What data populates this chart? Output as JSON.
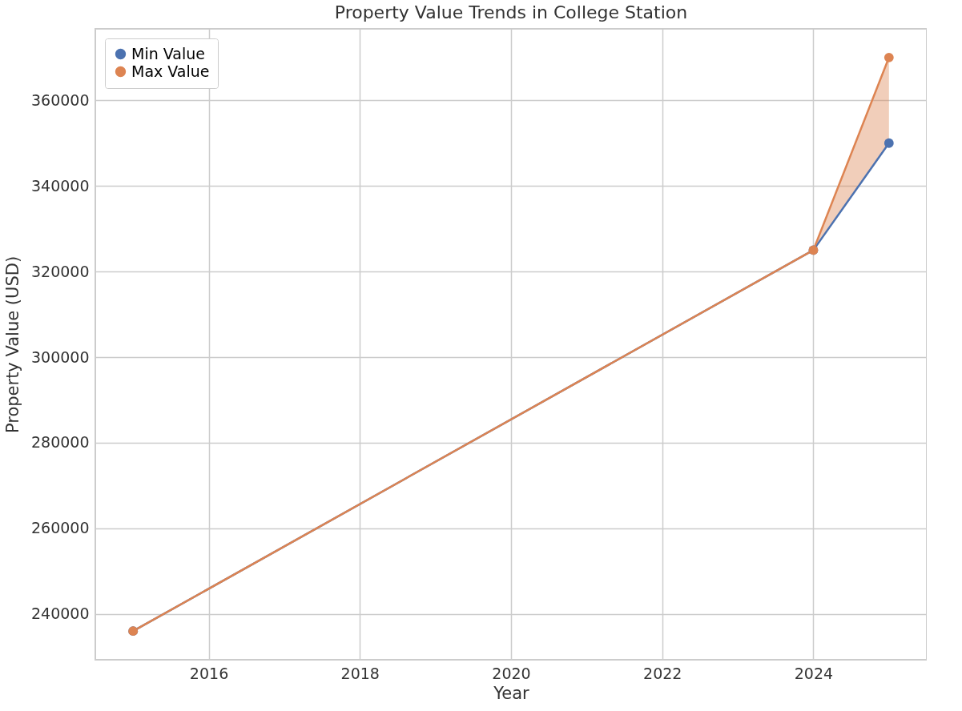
{
  "chart_data": {
    "type": "line",
    "title": "Property Value Trends in College Station",
    "xlabel": "Year",
    "ylabel": "Property Value (USD)",
    "x": [
      2015,
      2024,
      2025
    ],
    "series": [
      {
        "name": "Min Value",
        "color": "#4c72b0",
        "values": [
          236000,
          325000,
          350000
        ]
      },
      {
        "name": "Max Value",
        "color": "#dd8452",
        "values": [
          236000,
          325000,
          370000
        ],
        "lower": [
          null,
          325000,
          350000
        ],
        "upper": [
          null,
          325000,
          370000
        ]
      }
    ],
    "xlim": [
      2014.5,
      2025.5
    ],
    "xticks": [
      2016,
      2018,
      2020,
      2022,
      2024
    ],
    "ylim": [
      229300,
      376700
    ],
    "yticks": [
      240000,
      260000,
      280000,
      300000,
      320000,
      340000,
      360000
    ],
    "grid": true,
    "legend": "top left",
    "marker": "circle",
    "line_style": "solid"
  }
}
